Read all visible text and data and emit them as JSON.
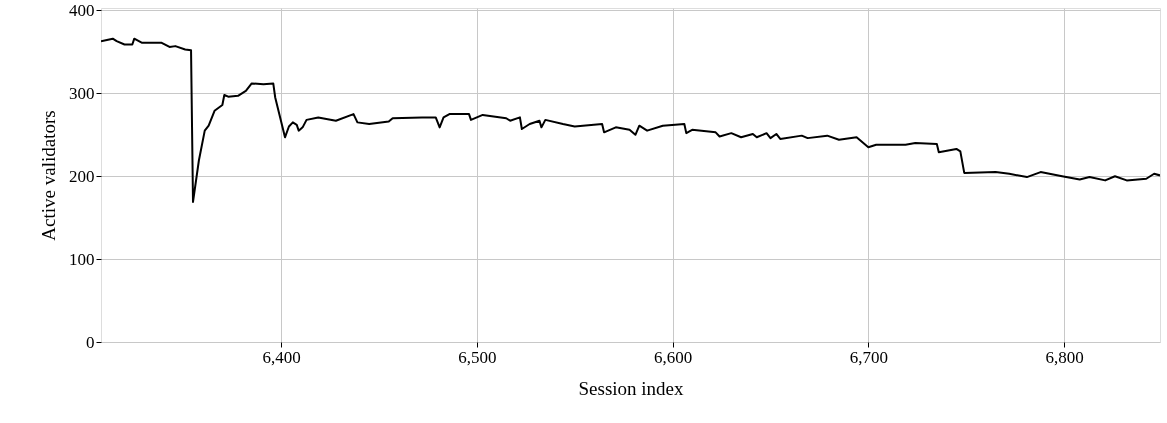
{
  "chart_data": {
    "type": "line",
    "xlabel": "Session index",
    "ylabel": "Active validators",
    "xlim": [
      6308,
      6849
    ],
    "ylim": [
      0,
      403
    ],
    "xticks": [
      {
        "value": 6400,
        "label": "6,400"
      },
      {
        "value": 6500,
        "label": "6,500"
      },
      {
        "value": 6600,
        "label": "6,600"
      },
      {
        "value": 6700,
        "label": "6,700"
      },
      {
        "value": 6800,
        "label": "6,800"
      }
    ],
    "yticks": [
      0,
      100,
      200,
      300,
      400
    ],
    "grid": true,
    "marker": "none",
    "line_style": "solid",
    "series": [
      {
        "color": "#000000",
        "x": [
          6308,
          6314,
          6316,
          6320,
          6324,
          6325,
          6329,
          6339,
          6343,
          6346,
          6351,
          6354,
          6355,
          6358,
          6361,
          6363,
          6366,
          6370,
          6371,
          6373,
          6378,
          6382,
          6385,
          6391,
          6396,
          6397,
          6402,
          6404,
          6406,
          6408,
          6409,
          6411,
          6413,
          6419,
          6428,
          6437,
          6439,
          6445,
          6455,
          6457,
          6472,
          6479,
          6481,
          6483,
          6486,
          6491,
          6496,
          6497,
          6503,
          6515,
          6517,
          6522,
          6523,
          6527,
          6532,
          6533,
          6535,
          6544,
          6550,
          6564,
          6565,
          6571,
          6578,
          6581,
          6583,
          6587,
          6595,
          6606,
          6607,
          6610,
          6622,
          6624,
          6630,
          6635,
          6641,
          6643,
          6648,
          6650,
          6653,
          6655,
          6666,
          6669,
          6679,
          6685,
          6694,
          6700,
          6704,
          6719,
          6724,
          6735,
          6736,
          6745,
          6747,
          6749,
          6765,
          6772,
          6781,
          6788,
          6799,
          6808,
          6813,
          6821,
          6826,
          6832,
          6842,
          6846,
          6849
        ],
        "values": [
          363,
          366,
          363,
          359,
          359,
          366,
          361,
          361,
          356,
          357,
          353,
          352,
          169,
          219,
          255,
          261,
          279,
          286,
          298,
          296,
          297,
          303,
          312,
          311,
          312,
          295,
          247,
          260,
          265,
          262,
          255,
          259,
          268,
          271,
          267,
          275,
          265,
          263,
          266,
          270,
          271,
          271,
          259,
          271,
          275,
          275,
          275,
          268,
          274,
          270,
          267,
          271,
          257,
          263,
          267,
          259,
          268,
          263,
          260,
          263,
          253,
          259,
          256,
          250,
          261,
          255,
          261,
          263,
          252,
          256,
          253,
          248,
          252,
          247,
          251,
          247,
          252,
          246,
          251,
          245,
          249,
          246,
          249,
          244,
          247,
          235,
          238,
          238,
          240,
          239,
          229,
          233,
          230,
          204,
          205,
          203,
          199,
          205,
          200,
          196,
          199,
          195,
          200,
          195,
          197,
          203,
          201
        ]
      }
    ]
  }
}
